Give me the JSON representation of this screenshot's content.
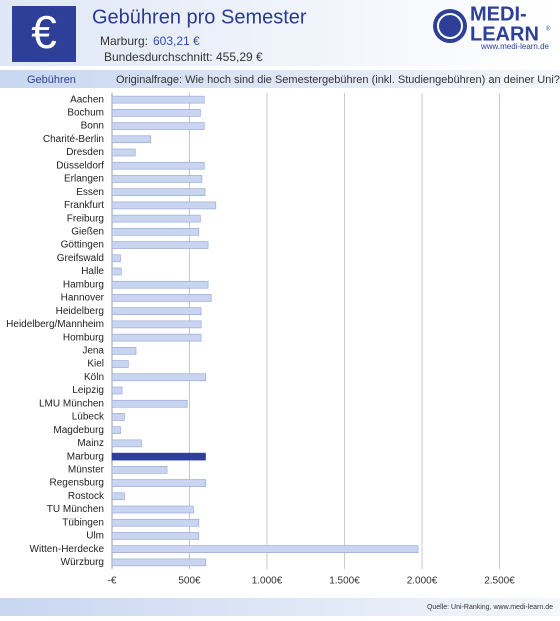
{
  "header": {
    "icon": "€",
    "title": "Gebühren pro Semester",
    "marburg_label": "Marburg:",
    "marburg_value": "603,21 €",
    "average_label": "Bundesdurchschnitt:",
    "average_value": "455,29 €",
    "logo_line1": "MEDI-",
    "logo_line2": "LEARN",
    "logo_mark": "®",
    "logo_url": "www.medi-learn.de",
    "tab": "Gebühren",
    "question": "Originalfrage: Wie hoch sind die Semestergebühren (inkl. Studiengebühren) an deiner Uni?"
  },
  "chart_data": {
    "type": "barh",
    "categories": [
      "Aachen",
      "Bochum",
      "Bonn",
      "Charité-Berlin",
      "Dresden",
      "Düsseldorf",
      "Erlangen",
      "Essen",
      "Frankfurt",
      "Freiburg",
      "Gießen",
      "Göttingen",
      "Greifswald",
      "Halle",
      "Hamburg",
      "Hannover",
      "Heidelberg",
      "Heidelberg/Mannheim",
      "Homburg",
      "Jena",
      "Kiel",
      "Köln",
      "Leipzig",
      "LMU München",
      "Lübeck",
      "Magdeburg",
      "Mainz",
      "Marburg",
      "Münster",
      "Regensburg",
      "Rostock",
      "TU München",
      "Tübingen",
      "Ulm",
      "Witten-Herdecke",
      "Würzburg"
    ],
    "values": [
      595,
      570,
      595,
      250,
      150,
      595,
      580,
      600,
      670,
      570,
      560,
      620,
      55,
      60,
      620,
      640,
      575,
      575,
      575,
      155,
      105,
      605,
      65,
      485,
      80,
      55,
      190,
      603.21,
      355,
      605,
      80,
      525,
      560,
      560,
      1975,
      605
    ],
    "color": "#c9d5f0",
    "highlight": "Marburg",
    "highlight_color": "#2f3e98",
    "xlim": [
      0,
      2800
    ],
    "xticks": [
      {
        "value": 0,
        "label": "-€"
      },
      {
        "value": 500,
        "label": "500€"
      },
      {
        "value": 1000,
        "label": "1.000€"
      },
      {
        "value": 1500,
        "label": "1.500€"
      },
      {
        "value": 2000,
        "label": "2.000€"
      },
      {
        "value": 2500,
        "label": "2.500€"
      }
    ],
    "grid": true
  },
  "footer": {
    "source": "Quelle: Uni-Ranking, www.medi-learn.de"
  }
}
